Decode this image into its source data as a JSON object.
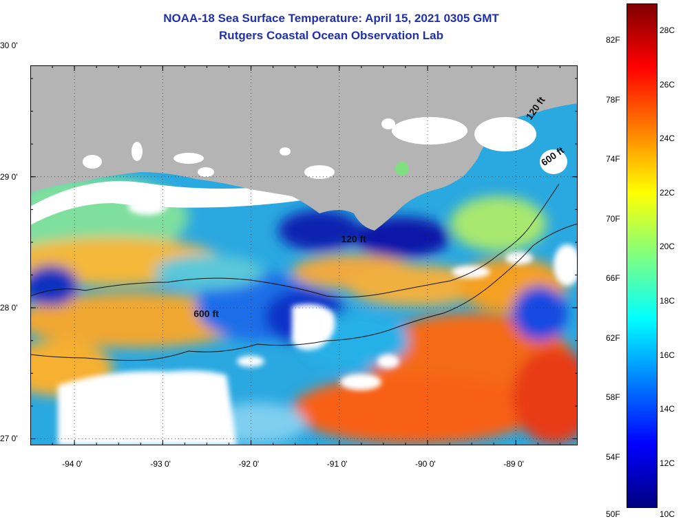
{
  "title": "NOAA-18 Sea Surface Temperature:  April 15, 2021 0305 GMT",
  "subtitle": "Rutgers Coastal Ocean Observation Lab",
  "map": {
    "lon_range": [
      -94.5,
      -88.3
    ],
    "lat_range": [
      26.95,
      29.85
    ],
    "lon_ticks": [
      {
        "value": -94,
        "label": "-94 0'"
      },
      {
        "value": -93,
        "label": "-93 0'"
      },
      {
        "value": -92,
        "label": "-92 0'"
      },
      {
        "value": -91,
        "label": "-91 0'"
      },
      {
        "value": -90,
        "label": "-90 0'"
      },
      {
        "value": -89,
        "label": "-89 0'"
      }
    ],
    "lat_ticks": [
      {
        "value": 30,
        "label": "30 0'"
      },
      {
        "value": 29,
        "label": "29 0'"
      },
      {
        "value": 28,
        "label": "28 0'"
      },
      {
        "value": 27,
        "label": "27 0'"
      }
    ],
    "land_color": "#b4b4b4",
    "contour_labels": [
      {
        "text": "120 ft",
        "lon": -90.98,
        "lat": 28.5
      },
      {
        "text": "600 ft",
        "lon": -92.65,
        "lat": 27.93
      },
      {
        "text": "120 ft",
        "lon": -88.83,
        "lat": 29.43
      },
      {
        "text": "600 ft",
        "lon": -88.68,
        "lat": 29.08
      }
    ]
  },
  "colorbar": {
    "colors": [
      "#00007f",
      "#0000ff",
      "#007fff",
      "#00ffff",
      "#7fff7f",
      "#ffff00",
      "#ff7f00",
      "#ff0000",
      "#7f0000"
    ],
    "fahrenheit": [
      "82F",
      "78F",
      "74F",
      "70F",
      "66F",
      "62F",
      "58F",
      "54F",
      "50F"
    ],
    "celsius": [
      "28C",
      "26C",
      "24C",
      "22C",
      "20C",
      "18C",
      "16C",
      "14C",
      "12C",
      "10C"
    ]
  }
}
